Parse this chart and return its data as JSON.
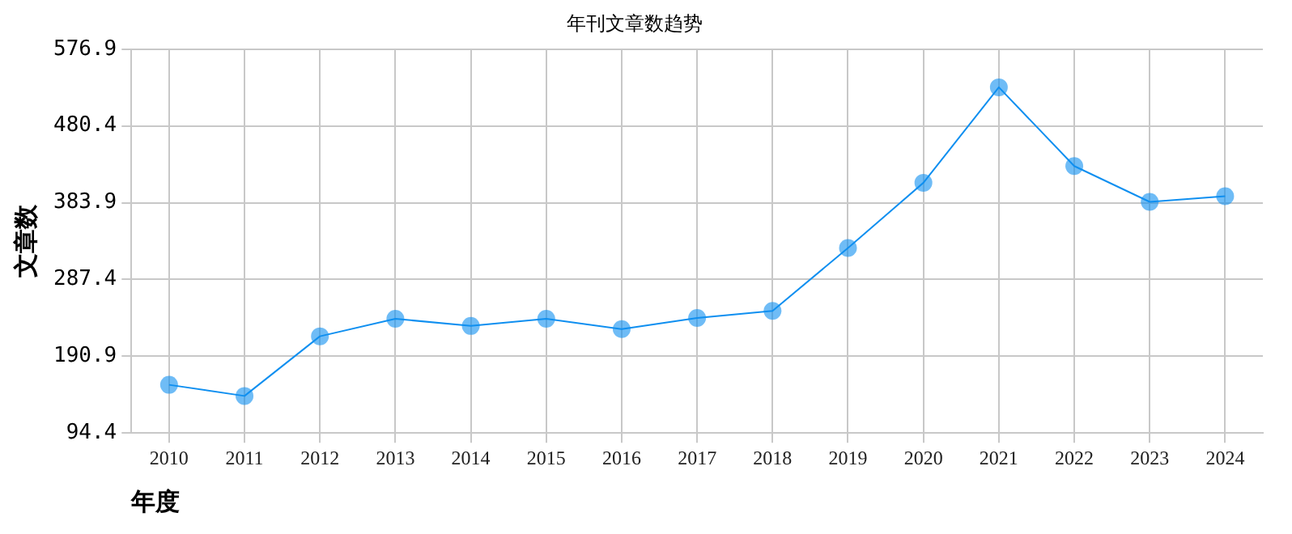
{
  "chart_data": {
    "type": "line",
    "title": "年刊文章数趋势",
    "xlabel": "年度",
    "ylabel": "文章数",
    "categories": [
      "2010",
      "2011",
      "2012",
      "2013",
      "2014",
      "2015",
      "2016",
      "2017",
      "2018",
      "2019",
      "2020",
      "2021",
      "2022",
      "2023",
      "2024"
    ],
    "series": [
      {
        "color": "#0f8ff0",
        "values": [
          155,
          141,
          216,
          238,
          229,
          238,
          225,
          239,
          248,
          327,
          409,
          529,
          430,
          385,
          392
        ]
      }
    ],
    "ylim": [
      94.4,
      576.9
    ],
    "yticks": [
      {
        "value": 94.4,
        "label": "94.4"
      },
      {
        "value": 190.9,
        "label": "190.9"
      },
      {
        "value": 287.4,
        "label": "287.4"
      },
      {
        "value": 383.9,
        "label": "383.9"
      },
      {
        "value": 480.4,
        "label": "480.4"
      },
      {
        "value": 576.9,
        "label": "576.9"
      }
    ],
    "grid": true,
    "legend": false,
    "marker": "circle",
    "line_style": "solid"
  }
}
